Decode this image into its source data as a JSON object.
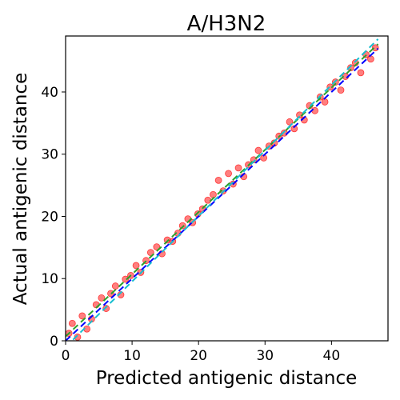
{
  "chart_data": {
    "type": "scatter",
    "title": "A/H3N2",
    "xlabel": "Predicted antigenic distance",
    "ylabel": "Actual antigenic distance",
    "xlim": [
      0,
      48.5
    ],
    "ylim": [
      0,
      49
    ],
    "xticks": [
      0,
      10,
      20,
      30,
      40
    ],
    "yticks": [
      0,
      10,
      20,
      30,
      40
    ],
    "grid": false,
    "legend": "none",
    "colors": {
      "points": "#ff0000",
      "identity_line": "#0000ff",
      "fit_line": "#2ca02c",
      "band_line": "#17becf"
    },
    "series": [
      {
        "kind": "points",
        "point_alpha": 0.5,
        "x": [
          0.5,
          1.0,
          1.8,
          2.5,
          3.2,
          3.9,
          4.6,
          5.4,
          6.1,
          6.8,
          7.5,
          8.3,
          9.0,
          9.8,
          10.6,
          11.3,
          12.1,
          12.8,
          13.7,
          14.5,
          15.3,
          16.1,
          16.9,
          17.6,
          18.4,
          19.1,
          19.9,
          20.6,
          21.4,
          22.2,
          23.0,
          23.7,
          24.5,
          25.2,
          26.0,
          26.8,
          27.5,
          28.3,
          29.0,
          29.8,
          30.6,
          31.4,
          32.1,
          32.9,
          33.7,
          34.4,
          35.2,
          35.9,
          36.7,
          37.5,
          38.3,
          39.0,
          39.8,
          40.6,
          41.4,
          42.1,
          42.9,
          43.6,
          44.4,
          45.2,
          45.9,
          46.6
        ],
        "y": [
          1.2,
          2.8,
          0.6,
          4.0,
          1.9,
          3.5,
          5.8,
          6.9,
          5.2,
          7.6,
          8.8,
          7.4,
          9.9,
          10.5,
          12.1,
          11.0,
          12.9,
          14.2,
          15.1,
          14.0,
          16.2,
          16.0,
          17.3,
          18.5,
          19.6,
          19.0,
          20.4,
          21.2,
          22.6,
          23.5,
          25.8,
          24.1,
          26.9,
          25.2,
          27.8,
          26.4,
          28.3,
          29.1,
          30.6,
          29.4,
          31.3,
          31.8,
          32.9,
          33.4,
          35.2,
          34.1,
          36.3,
          35.5,
          37.8,
          37.0,
          39.2,
          38.4,
          40.8,
          41.6,
          40.3,
          42.5,
          43.9,
          44.7,
          43.1,
          46.0,
          45.3,
          47.1
        ]
      },
      {
        "kind": "line",
        "x": [
          0,
          47
        ],
        "y": [
          0,
          47
        ]
      },
      {
        "kind": "line",
        "x": [
          0,
          47
        ],
        "y": [
          0.7,
          47.7
        ]
      },
      {
        "kind": "line",
        "x": [
          0,
          47
        ],
        "y": [
          -1.0,
          48.5
        ]
      }
    ]
  }
}
